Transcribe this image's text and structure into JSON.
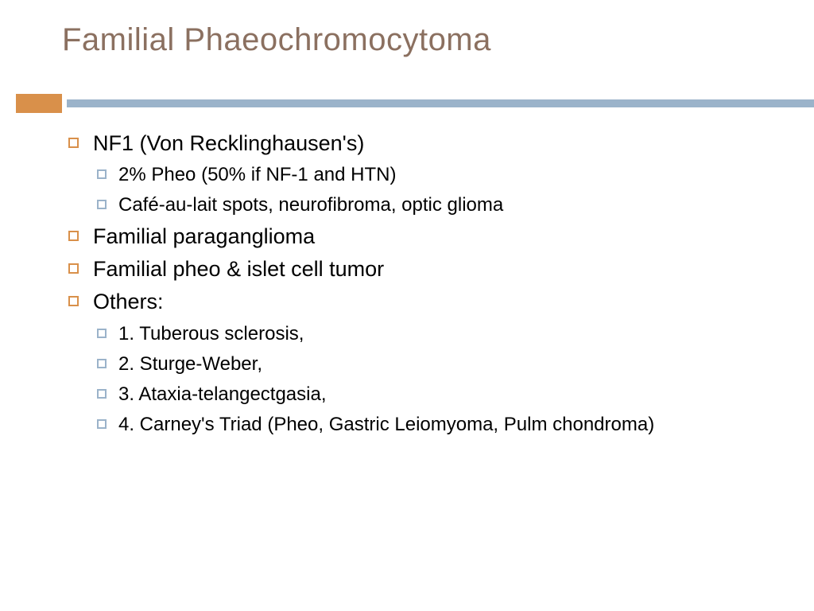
{
  "colors": {
    "title": "#8b7060",
    "accent": "#d9904a",
    "divider": "#9bb3ca",
    "bullet1": "#d9904a",
    "bullet2": "#9bb3ca"
  },
  "title": "Familial  Phaeochromocytoma",
  "items": [
    {
      "level": 1,
      "text": "NF1 (Von Recklinghausen's)"
    },
    {
      "level": 2,
      "text": " 2% Pheo (50% if NF-1 and HTN)"
    },
    {
      "level": 2,
      "text": " Café-au-lait spots, neurofibroma, optic glioma"
    },
    {
      "level": 1,
      "text": "Familial paraganglioma"
    },
    {
      "level": 1,
      "text": "Familial pheo & islet cell tumor"
    },
    {
      "level": 1,
      "text": "Others:"
    },
    {
      "level": 2,
      "text": "1. Tuberous sclerosis,"
    },
    {
      "level": 2,
      "text": "2. Sturge-Weber,"
    },
    {
      "level": 2,
      "text": "3. Ataxia-telangectgasia,"
    },
    {
      "level": 2,
      "text": "4. Carney's Triad (Pheo, Gastric Leiomyoma, Pulm chondroma)",
      "justify": true
    }
  ]
}
